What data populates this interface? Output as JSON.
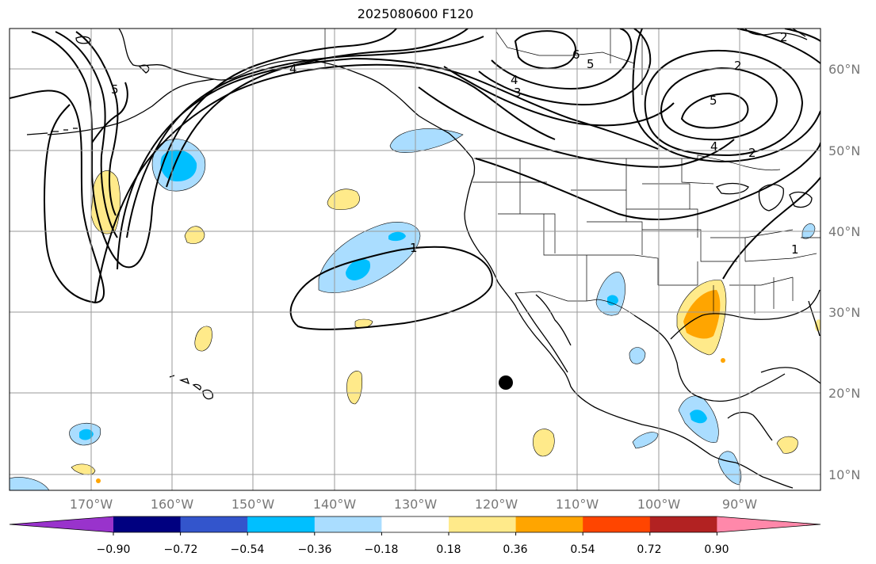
{
  "title": "2025080600 F120",
  "lon_labels": [
    "170°W",
    "160°W",
    "150°W",
    "140°W",
    "130°W",
    "120°W",
    "110°W",
    "100°W",
    "90°W"
  ],
  "lat_labels": [
    "60°N",
    "50°N",
    "40°N",
    "30°N",
    "20°N",
    "10°N"
  ],
  "contour_labels": [
    "5",
    "4",
    "6",
    "5",
    "4",
    "3",
    "2",
    "5",
    "4",
    "2",
    "2",
    "1",
    "1"
  ],
  "colorbar": {
    "colors": [
      "#9933cc",
      "#000080",
      "#3355cc",
      "#00bfff",
      "#aaddff",
      "#ffffff",
      "#ffea8a",
      "#ffa500",
      "#ff4500",
      "#b22222",
      "#ff88aa"
    ],
    "tick_labels": [
      "−0.90",
      "−0.72",
      "−0.54",
      "−0.36",
      "−0.18",
      "0.18",
      "0.36",
      "0.54",
      "0.72",
      "0.90"
    ]
  }
}
